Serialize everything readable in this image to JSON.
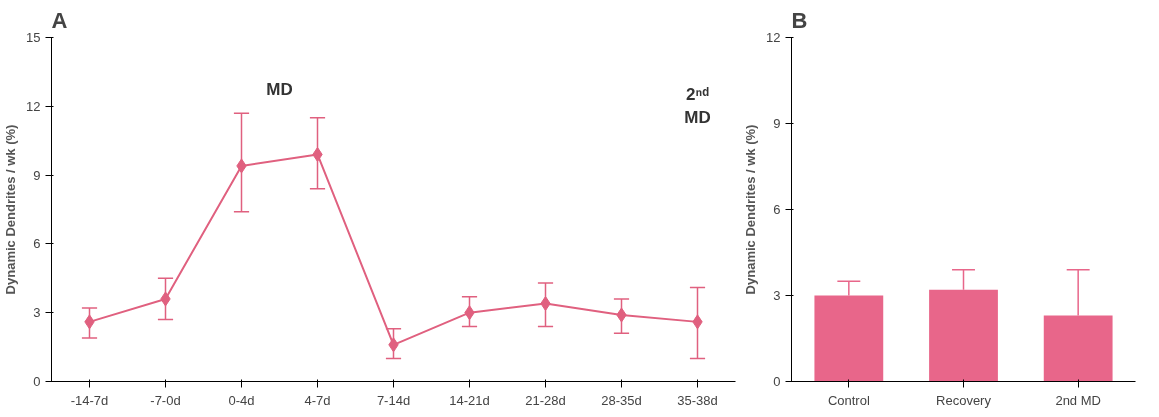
{
  "chart_data": [
    {
      "type": "line",
      "title": "A",
      "ylabel": "Dynamic Dendrites / wk (%)",
      "categories": [
        "-14-7d",
        "-7-0d",
        "0-4d",
        "4-7d",
        "7-14d",
        "14-21d",
        "21-28d",
        "28-35d",
        "35-38d"
      ],
      "series": [
        {
          "color": "#e0607f",
          "values": [
            2.6,
            3.6,
            9.4,
            9.9,
            1.6,
            3.0,
            3.4,
            2.9,
            2.6
          ],
          "errors": [
            [
              1.9,
              3.2
            ],
            [
              2.7,
              4.5
            ],
            [
              7.4,
              11.7
            ],
            [
              8.4,
              11.5
            ],
            [
              1.0,
              2.3
            ],
            [
              2.4,
              3.7
            ],
            [
              2.4,
              4.3
            ],
            [
              2.1,
              3.6
            ],
            [
              1.0,
              4.1
            ]
          ]
        }
      ],
      "marker": "diamond",
      "ylim": [
        0,
        15
      ],
      "yticks": [
        0,
        3,
        6,
        9,
        12,
        15
      ],
      "grid": false,
      "annotations": [
        "MD",
        "2ⁿᵈ MD"
      ]
    },
    {
      "type": "bar",
      "title": "B",
      "ylabel": "Dynamic Dendrites / wk (%)",
      "categories": [
        "Control",
        "Recovery",
        "2nd MD"
      ],
      "series": [
        {
          "color": "#e8668a",
          "values": [
            3.0,
            3.2,
            2.3
          ],
          "errors": [
            [
              3.0,
              3.5
            ],
            [
              3.2,
              3.9
            ],
            [
              2.3,
              3.9
            ]
          ]
        }
      ],
      "ylim": [
        0,
        12
      ],
      "yticks": [
        0,
        3,
        6,
        9,
        12
      ],
      "grid": false
    }
  ]
}
